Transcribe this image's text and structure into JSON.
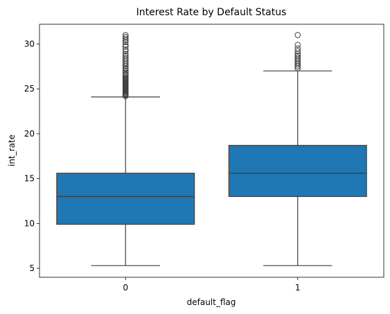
{
  "chart_data": {
    "type": "boxplot",
    "title": "Interest Rate by Default Status",
    "xlabel": "default_flag",
    "ylabel": "int_rate",
    "ylim": [
      4.0,
      32.2
    ],
    "y_ticks": [
      5,
      10,
      15,
      20,
      25,
      30
    ],
    "categories": [
      "0",
      "1"
    ],
    "box_color": "#1f77b4",
    "boxes": [
      {
        "category": "0",
        "whisker_low": 5.3,
        "q1": 9.9,
        "median": 13.0,
        "q3": 15.6,
        "whisker_high": 24.1,
        "outliers": [
          24.2,
          24.3,
          24.4,
          24.5,
          24.6,
          24.7,
          24.8,
          24.9,
          25.0,
          25.1,
          25.2,
          25.3,
          25.4,
          25.5,
          25.6,
          25.7,
          25.8,
          25.9,
          26.0,
          26.1,
          26.2,
          26.3,
          26.5,
          26.6,
          26.8,
          27.0,
          27.2,
          27.3,
          27.5,
          27.7,
          27.9,
          28.1,
          28.3,
          28.5,
          28.7,
          28.9,
          29.2,
          29.4,
          29.7,
          29.9,
          30.2,
          30.4,
          30.6,
          30.8,
          31.0
        ]
      },
      {
        "category": "1",
        "whisker_low": 5.3,
        "q1": 13.0,
        "median": 15.6,
        "q3": 18.7,
        "whisker_high": 27.0,
        "outliers": [
          27.3,
          27.5,
          27.7,
          27.9,
          28.1,
          28.3,
          28.5,
          28.7,
          28.9,
          29.2,
          29.5,
          29.9,
          31.0
        ]
      }
    ]
  }
}
